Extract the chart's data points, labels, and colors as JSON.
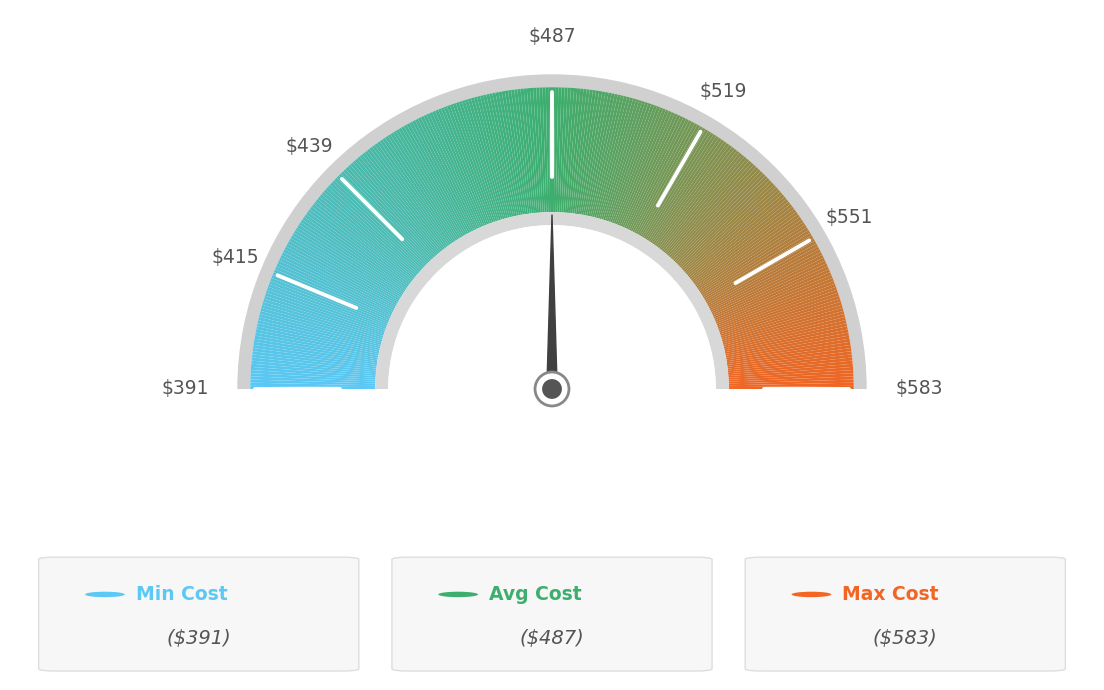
{
  "min_val": 391,
  "max_val": 583,
  "avg_val": 487,
  "labels": [
    "$391",
    "$415",
    "$439",
    "$487",
    "$519",
    "$551",
    "$583"
  ],
  "label_values": [
    391,
    415,
    439,
    487,
    519,
    551,
    583
  ],
  "min_cost_label": "Min Cost",
  "avg_cost_label": "Avg Cost",
  "max_cost_label": "Max Cost",
  "min_cost_val": "($391)",
  "avg_cost_val": "($487)",
  "max_cost_val": "($583)",
  "min_color": "#5bc8f5",
  "avg_color": "#3dae6e",
  "max_color": "#f26522",
  "needle_color": "#404040",
  "background_color": "#ffffff",
  "tick_color": "#ffffff",
  "label_color": "#555555",
  "box_bg": "#f7f7f7",
  "box_border": "#dedede",
  "outer_r": 1.28,
  "inner_r": 0.75,
  "border_thickness": 0.055,
  "inner_border_thickness": 0.055
}
